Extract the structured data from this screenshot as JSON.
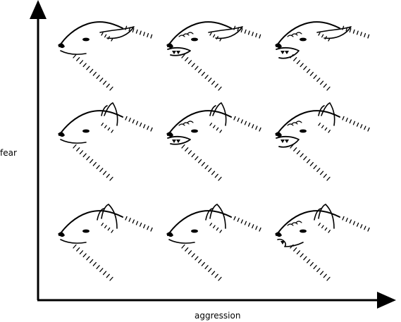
{
  "axes": {
    "x_label": "aggression",
    "y_label": "fear"
  },
  "grid": {
    "rows": 3,
    "cols": 3,
    "cells": [
      {
        "row": 0,
        "col": 0,
        "ears": "flat",
        "mouth": "closed"
      },
      {
        "row": 0,
        "col": 1,
        "ears": "flat",
        "mouth": "snarl"
      },
      {
        "row": 0,
        "col": 2,
        "ears": "flat",
        "mouth": "open-snarl"
      },
      {
        "row": 1,
        "col": 0,
        "ears": "half",
        "mouth": "closed"
      },
      {
        "row": 1,
        "col": 1,
        "ears": "half",
        "mouth": "snarl"
      },
      {
        "row": 1,
        "col": 2,
        "ears": "half",
        "mouth": "open-snarl"
      },
      {
        "row": 2,
        "col": 0,
        "ears": "erect",
        "mouth": "closed"
      },
      {
        "row": 2,
        "col": 1,
        "ears": "erect",
        "mouth": "closed"
      },
      {
        "row": 2,
        "col": 2,
        "ears": "erect",
        "mouth": "slight-snarl"
      }
    ]
  }
}
